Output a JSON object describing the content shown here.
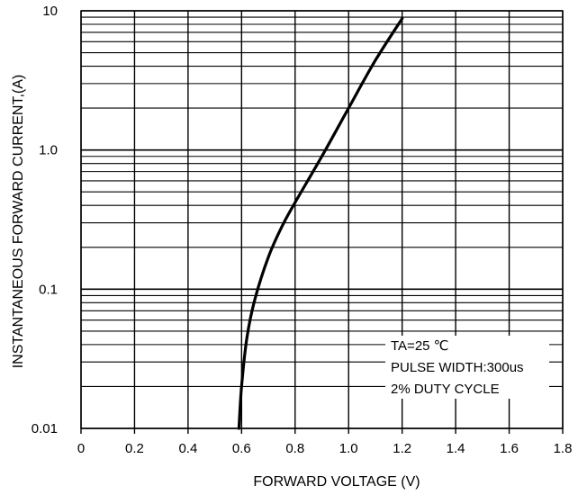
{
  "chart_data": {
    "type": "line",
    "title": "",
    "xlabel": "FORWARD VOLTAGE (V)",
    "ylabel": "INSTANTANEOUS FORWARD CURRENT,(A)",
    "x_ticks": [
      0,
      0.2,
      0.4,
      0.6,
      0.8,
      1.0,
      1.2,
      1.4,
      1.6,
      1.8
    ],
    "x_tick_labels": [
      "0",
      "0.2",
      "0.4",
      "0.6",
      "0.8",
      "1.0",
      "1.2",
      "1.4",
      "1.6",
      "1.8"
    ],
    "xlim": [
      0,
      1.8
    ],
    "y_scale": "log",
    "ylim": [
      0.01,
      10
    ],
    "y_ticks": [
      0.01,
      0.1,
      1.0,
      10
    ],
    "y_tick_labels": [
      "0.01",
      "0.1",
      "1.0",
      "10"
    ],
    "grid": true,
    "series": [
      {
        "x": [
          0.59,
          0.6,
          0.62,
          0.65,
          0.7,
          0.75,
          0.8,
          0.9,
          1.0,
          1.1,
          1.2
        ],
        "y": [
          0.01,
          0.02,
          0.045,
          0.085,
          0.17,
          0.28,
          0.42,
          0.9,
          2.0,
          4.4,
          8.8
        ]
      }
    ],
    "annotations": [
      "TA=25 ℃",
      "PULSE WIDTH:300us",
      "2% DUTY CYCLE"
    ]
  }
}
